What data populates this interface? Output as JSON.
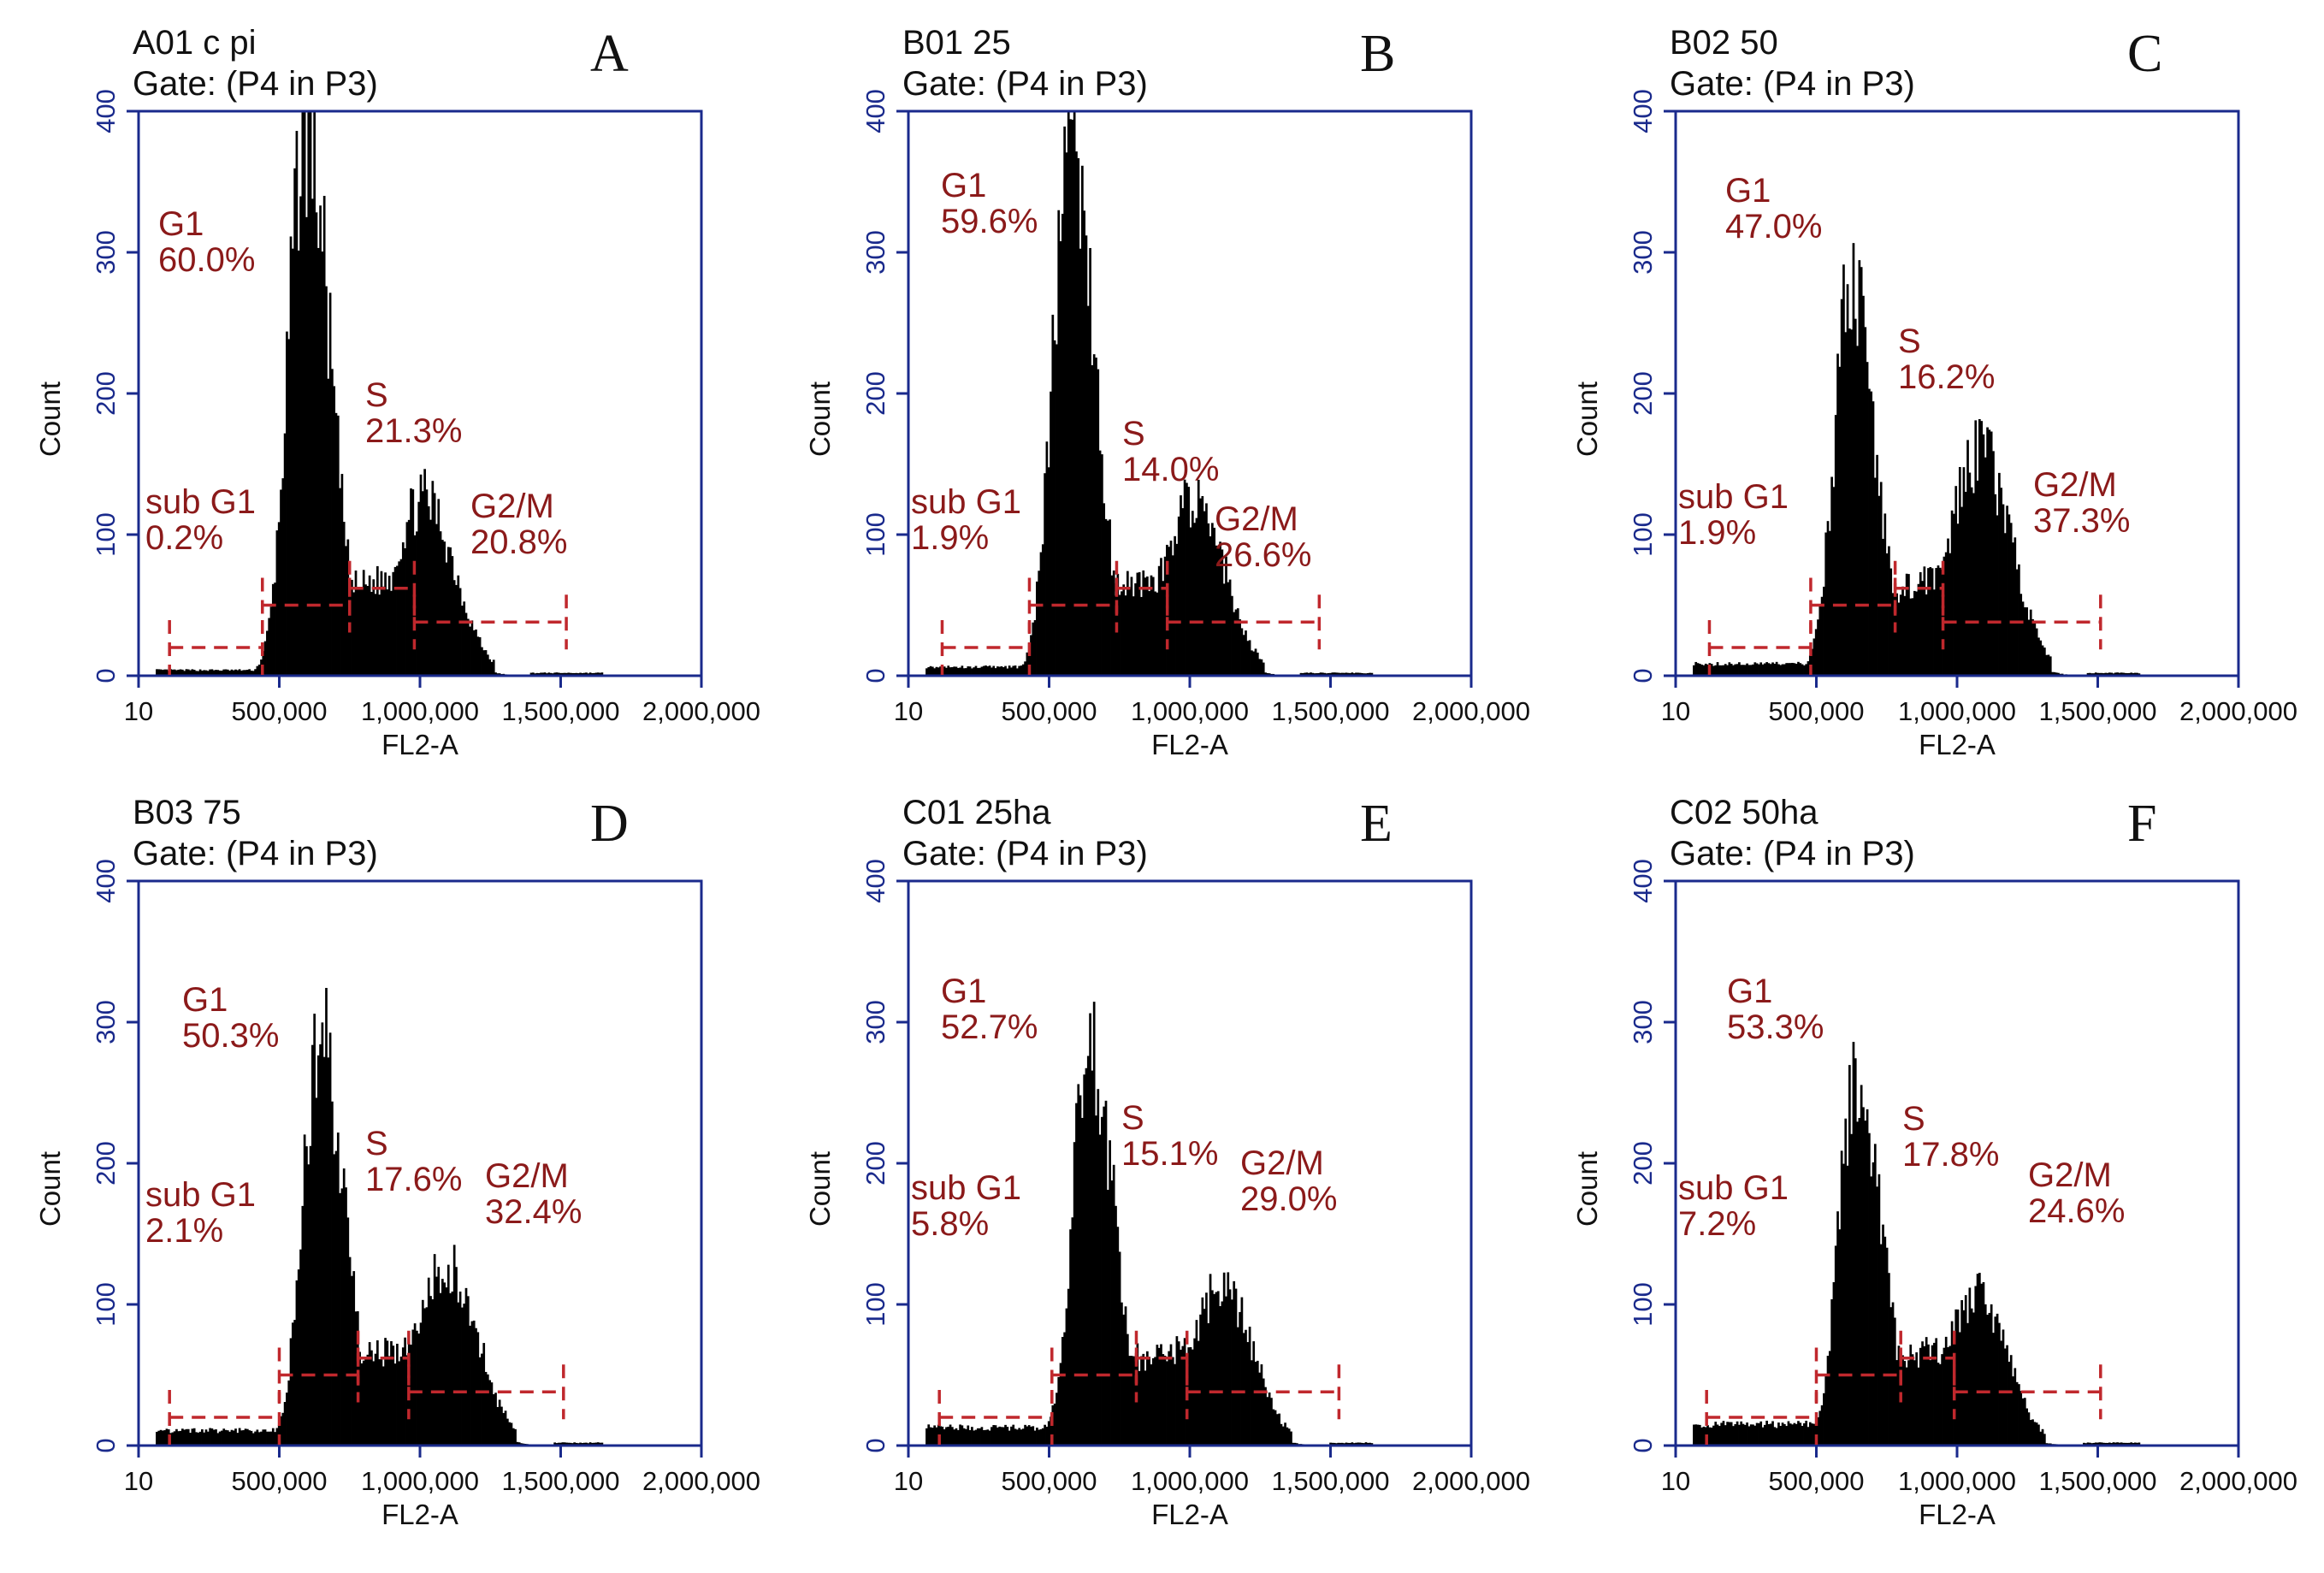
{
  "colors": {
    "frame": "#1a2a8c",
    "histogram": "#000000",
    "gate": "#c0282d",
    "gate_label": "#8b1a1a",
    "text": "#111111"
  },
  "figure": {
    "x_axis_label": "FL2-A",
    "y_axis_label": "Count",
    "x_tick_labels": [
      "10",
      "500,000",
      "1,000,000",
      "1,500,000",
      "2,000,000"
    ],
    "y_tick_labels": [
      "0",
      "100",
      "200",
      "300",
      "400"
    ]
  },
  "panels": [
    {
      "letter": "A",
      "sample": "A01 c pi",
      "gate": "Gate: (P4 in P3)",
      "stats": {
        "sub_g1": {
          "name": "sub G1",
          "pct": "0.2%"
        },
        "g1": {
          "name": "G1",
          "pct": "60.0%"
        },
        "s": {
          "name": "S",
          "pct": "21.3%"
        },
        "g2m": {
          "name": "G2/M",
          "pct": "20.8%"
        }
      }
    },
    {
      "letter": "B",
      "sample": "B01 25",
      "gate": "Gate: (P4 in P3)",
      "stats": {
        "sub_g1": {
          "name": "sub G1",
          "pct": "1.9%"
        },
        "g1": {
          "name": "G1",
          "pct": "59.6%"
        },
        "s": {
          "name": "S",
          "pct": "14.0%"
        },
        "g2m": {
          "name": "G2/M",
          "pct": "26.6%"
        }
      }
    },
    {
      "letter": "C",
      "sample": "B02 50",
      "gate": "Gate: (P4 in P3)",
      "stats": {
        "sub_g1": {
          "name": "sub G1",
          "pct": "1.9%"
        },
        "g1": {
          "name": "G1",
          "pct": "47.0%"
        },
        "s": {
          "name": "S",
          "pct": "16.2%"
        },
        "g2m": {
          "name": "G2/M",
          "pct": "37.3%"
        }
      }
    },
    {
      "letter": "D",
      "sample": "B03 75",
      "gate": "Gate: (P4 in P3)",
      "stats": {
        "sub_g1": {
          "name": "sub G1",
          "pct": "2.1%"
        },
        "g1": {
          "name": "G1",
          "pct": "50.3%"
        },
        "s": {
          "name": "S",
          "pct": "17.6%"
        },
        "g2m": {
          "name": "G2/M",
          "pct": "32.4%"
        }
      }
    },
    {
      "letter": "E",
      "sample": "C01 25ha",
      "gate": "Gate: (P4 in P3)",
      "stats": {
        "sub_g1": {
          "name": "sub G1",
          "pct": "5.8%"
        },
        "g1": {
          "name": "G1",
          "pct": "52.7%"
        },
        "s": {
          "name": "S",
          "pct": "15.1%"
        },
        "g2m": {
          "name": "G2/M",
          "pct": "29.0%"
        }
      }
    },
    {
      "letter": "F",
      "sample": "C02 50ha",
      "gate": "Gate: (P4 in P3)",
      "stats": {
        "sub_g1": {
          "name": "sub G1",
          "pct": "7.2%"
        },
        "g1": {
          "name": "G1",
          "pct": "53.3%"
        },
        "s": {
          "name": "S",
          "pct": "17.8%"
        },
        "g2m": {
          "name": "G2/M",
          "pct": "24.6%"
        }
      }
    }
  ],
  "chart_data": [
    {
      "type": "histogram",
      "title": "A01 c pi",
      "xlabel": "FL2-A",
      "ylabel": "Count",
      "xlim": [
        10,
        2000000
      ],
      "ylim": [
        0,
        400
      ],
      "peaks": [
        {
          "x": 590000,
          "count": 392
        },
        {
          "x": 1010000,
          "count": 125
        }
      ],
      "gate_ranges": {
        "sub_g1": [
          110000,
          440000
        ],
        "g1": [
          440000,
          750000
        ],
        "s": [
          750000,
          980000
        ],
        "g2m": [
          980000,
          1520000
        ]
      },
      "percentages": {
        "sub_g1": 0.2,
        "g1": 60.0,
        "s": 21.3,
        "g2m": 20.8
      }
    },
    {
      "type": "histogram",
      "title": "B01 25",
      "xlabel": "FL2-A",
      "ylabel": "Count",
      "xlim": [
        10,
        2000000
      ],
      "ylim": [
        0,
        400
      ],
      "peaks": [
        {
          "x": 570000,
          "count": 385
        },
        {
          "x": 1010000,
          "count": 125
        }
      ],
      "gate_ranges": {
        "sub_g1": [
          120000,
          430000
        ],
        "g1": [
          430000,
          740000
        ],
        "s": [
          740000,
          920000
        ],
        "g2m": [
          920000,
          1460000
        ]
      },
      "percentages": {
        "sub_g1": 1.9,
        "g1": 59.6,
        "s": 14.0,
        "g2m": 26.6
      }
    },
    {
      "type": "histogram",
      "title": "B02 50",
      "xlabel": "FL2-A",
      "ylabel": "Count",
      "xlim": [
        10,
        2000000
      ],
      "ylim": [
        0,
        400
      ],
      "peaks": [
        {
          "x": 620000,
          "count": 275
        },
        {
          "x": 1080000,
          "count": 158
        }
      ],
      "gate_ranges": {
        "sub_g1": [
          120000,
          480000
        ],
        "g1": [
          480000,
          780000
        ],
        "s": [
          780000,
          950000
        ],
        "g2m": [
          950000,
          1510000
        ]
      },
      "percentages": {
        "sub_g1": 1.9,
        "g1": 47.0,
        "s": 16.2,
        "g2m": 37.3
      }
    },
    {
      "type": "histogram",
      "title": "B03 75",
      "xlabel": "FL2-A",
      "ylabel": "Count",
      "xlim": [
        10,
        2000000
      ],
      "ylim": [
        0,
        400
      ],
      "peaks": [
        {
          "x": 640000,
          "count": 290
        },
        {
          "x": 1090000,
          "count": 130
        }
      ],
      "gate_ranges": {
        "sub_g1": [
          110000,
          500000
        ],
        "g1": [
          500000,
          780000
        ],
        "s": [
          780000,
          960000
        ],
        "g2m": [
          960000,
          1510000
        ]
      },
      "percentages": {
        "sub_g1": 2.1,
        "g1": 50.3,
        "s": 17.6,
        "g2m": 32.4
      }
    },
    {
      "type": "histogram",
      "title": "C01 25ha",
      "xlabel": "FL2-A",
      "ylabel": "Count",
      "xlim": [
        10,
        2000000
      ],
      "ylim": [
        0,
        400
      ],
      "peaks": [
        {
          "x": 640000,
          "count": 283
        },
        {
          "x": 1110000,
          "count": 112
        }
      ],
      "gate_ranges": {
        "sub_g1": [
          110000,
          510000
        ],
        "g1": [
          510000,
          810000
        ],
        "s": [
          810000,
          990000
        ],
        "g2m": [
          990000,
          1530000
        ]
      },
      "percentages": {
        "sub_g1": 5.8,
        "g1": 52.7,
        "s": 15.1,
        "g2m": 29.0
      }
    },
    {
      "type": "histogram",
      "title": "C02 50ha",
      "xlabel": "FL2-A",
      "ylabel": "Count",
      "xlim": [
        10,
        2000000
      ],
      "ylim": [
        0,
        400
      ],
      "peaks": [
        {
          "x": 640000,
          "count": 275
        },
        {
          "x": 1060000,
          "count": 108
        }
      ],
      "gate_ranges": {
        "sub_g1": [
          110000,
          500000
        ],
        "g1": [
          500000,
          800000
        ],
        "s": [
          800000,
          990000
        ],
        "g2m": [
          990000,
          1510000
        ]
      },
      "percentages": {
        "sub_g1": 7.2,
        "g1": 53.3,
        "s": 17.8,
        "g2m": 24.6
      }
    }
  ]
}
